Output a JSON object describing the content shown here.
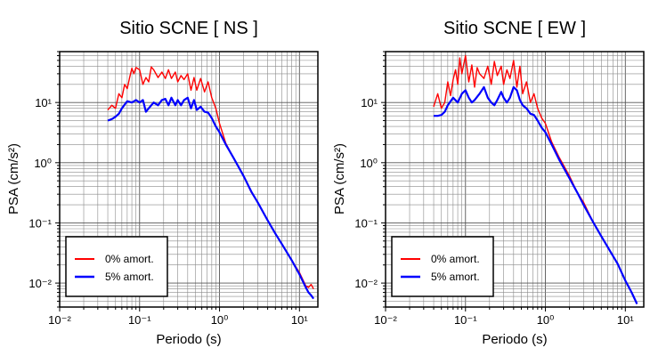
{
  "chart_data": [
    {
      "type": "line",
      "title": "Sitio SCNE [ NS ]",
      "xlabel": "Periodo (s)",
      "ylabel": "PSA (cm/s²)",
      "xscale": "log",
      "yscale": "log",
      "xlim": [
        0.01,
        17
      ],
      "ylim": [
        0.004,
        70
      ],
      "grid": true,
      "legend_position": "bottom-left",
      "x_tick_labels": [
        "10⁻²",
        "10⁻¹",
        "10⁰",
        "10¹"
      ],
      "y_tick_labels": [
        "10⁻²",
        "10⁻¹",
        "10⁰",
        "10¹"
      ],
      "series": [
        {
          "name": "0% amort.",
          "color": "#ff0000",
          "x": [
            0.04,
            0.045,
            0.05,
            0.055,
            0.06,
            0.065,
            0.07,
            0.075,
            0.08,
            0.085,
            0.09,
            0.1,
            0.11,
            0.12,
            0.13,
            0.14,
            0.15,
            0.17,
            0.19,
            0.21,
            0.23,
            0.25,
            0.28,
            0.3,
            0.33,
            0.36,
            0.4,
            0.44,
            0.48,
            0.52,
            0.58,
            0.65,
            0.72,
            0.8,
            0.9,
            1.0,
            1.2,
            1.5,
            2.0,
            2.5,
            3.0,
            4.0,
            5.0,
            6.0,
            8.0,
            10.0,
            12.0,
            13.0,
            14.0,
            15.0
          ],
          "y": [
            7.5,
            9,
            8,
            14,
            12,
            20,
            17,
            26,
            37,
            30,
            38,
            35,
            20,
            26,
            22,
            39,
            35,
            26,
            32,
            25,
            35,
            25,
            32,
            22,
            28,
            24,
            30,
            16,
            26,
            16,
            25,
            15,
            22,
            12,
            8,
            4.5,
            2.1,
            1.2,
            0.6,
            0.32,
            0.22,
            0.11,
            0.066,
            0.045,
            0.024,
            0.015,
            0.009,
            0.0085,
            0.0095,
            0.008
          ]
        },
        {
          "name": "5% amort.",
          "color": "#0000ff",
          "x": [
            0.04,
            0.045,
            0.05,
            0.055,
            0.06,
            0.07,
            0.08,
            0.09,
            0.1,
            0.11,
            0.12,
            0.13,
            0.15,
            0.17,
            0.19,
            0.21,
            0.23,
            0.25,
            0.28,
            0.3,
            0.33,
            0.36,
            0.4,
            0.44,
            0.48,
            0.52,
            0.58,
            0.65,
            0.72,
            0.8,
            0.9,
            1.0,
            1.2,
            1.5,
            2.0,
            2.5,
            3.0,
            4.0,
            5.0,
            6.0,
            8.0,
            10.0,
            12.0,
            13.0,
            14.0,
            15.0
          ],
          "y": [
            5,
            5.3,
            5.8,
            6.5,
            8,
            10.5,
            10,
            11,
            10,
            11,
            7,
            8,
            10,
            9,
            11,
            11.5,
            9,
            12,
            9,
            11,
            9,
            11,
            12,
            8,
            11,
            7.5,
            8.5,
            7,
            6.8,
            5.5,
            4,
            3.2,
            2,
            1.2,
            0.6,
            0.33,
            0.22,
            0.11,
            0.066,
            0.045,
            0.024,
            0.014,
            0.0085,
            0.007,
            0.0063,
            0.0055
          ]
        }
      ]
    },
    {
      "type": "line",
      "title": "Sitio SCNE [ EW ]",
      "xlabel": "Periodo (s)",
      "ylabel": "PSA (cm/s²)",
      "xscale": "log",
      "yscale": "log",
      "xlim": [
        0.01,
        17
      ],
      "ylim": [
        0.004,
        70
      ],
      "grid": true,
      "legend_position": "bottom-left",
      "x_tick_labels": [
        "10⁻²",
        "10⁻¹",
        "10⁰",
        "10¹"
      ],
      "y_tick_labels": [
        "10⁻²",
        "10⁻¹",
        "10⁰",
        "10¹"
      ],
      "series": [
        {
          "name": "0% amort.",
          "color": "#ff0000",
          "x": [
            0.04,
            0.045,
            0.05,
            0.055,
            0.06,
            0.065,
            0.07,
            0.075,
            0.08,
            0.085,
            0.09,
            0.1,
            0.11,
            0.12,
            0.13,
            0.14,
            0.15,
            0.17,
            0.19,
            0.21,
            0.23,
            0.25,
            0.28,
            0.3,
            0.33,
            0.36,
            0.4,
            0.44,
            0.48,
            0.52,
            0.58,
            0.65,
            0.72,
            0.8,
            0.9,
            1.0,
            1.2,
            1.5,
            2.0,
            2.5,
            3.0,
            4.0,
            5.0,
            6.0,
            8.0,
            10.0,
            12.0,
            14.0
          ],
          "y": [
            8.5,
            14,
            8,
            10,
            22,
            13,
            24,
            35,
            20,
            55,
            30,
            60,
            22,
            42,
            18,
            38,
            30,
            25,
            40,
            20,
            48,
            28,
            40,
            20,
            35,
            25,
            50,
            18,
            40,
            14,
            22,
            10,
            14,
            8,
            5.5,
            4.5,
            2.2,
            1.2,
            0.6,
            0.32,
            0.22,
            0.1,
            0.06,
            0.04,
            0.021,
            0.011,
            0.007,
            0.0045
          ]
        },
        {
          "name": "5% amort.",
          "color": "#0000ff",
          "x": [
            0.04,
            0.045,
            0.05,
            0.055,
            0.06,
            0.07,
            0.08,
            0.09,
            0.1,
            0.11,
            0.12,
            0.13,
            0.15,
            0.17,
            0.19,
            0.21,
            0.23,
            0.25,
            0.28,
            0.3,
            0.33,
            0.36,
            0.4,
            0.44,
            0.48,
            0.52,
            0.58,
            0.65,
            0.72,
            0.8,
            0.9,
            1.0,
            1.2,
            1.5,
            2.0,
            2.5,
            3.0,
            4.0,
            5.0,
            6.0,
            8.0,
            10.0,
            12.0,
            14.0
          ],
          "y": [
            6,
            6,
            6.2,
            7,
            9,
            12,
            10,
            14,
            16,
            12,
            10,
            11,
            14,
            18,
            12,
            10,
            9,
            11,
            15,
            12,
            10,
            12,
            18,
            16,
            11,
            9,
            8,
            6.5,
            6.2,
            5,
            3.8,
            3.2,
            2,
            1.1,
            0.55,
            0.32,
            0.2,
            0.1,
            0.06,
            0.04,
            0.021,
            0.011,
            0.007,
            0.0045
          ]
        }
      ]
    }
  ]
}
